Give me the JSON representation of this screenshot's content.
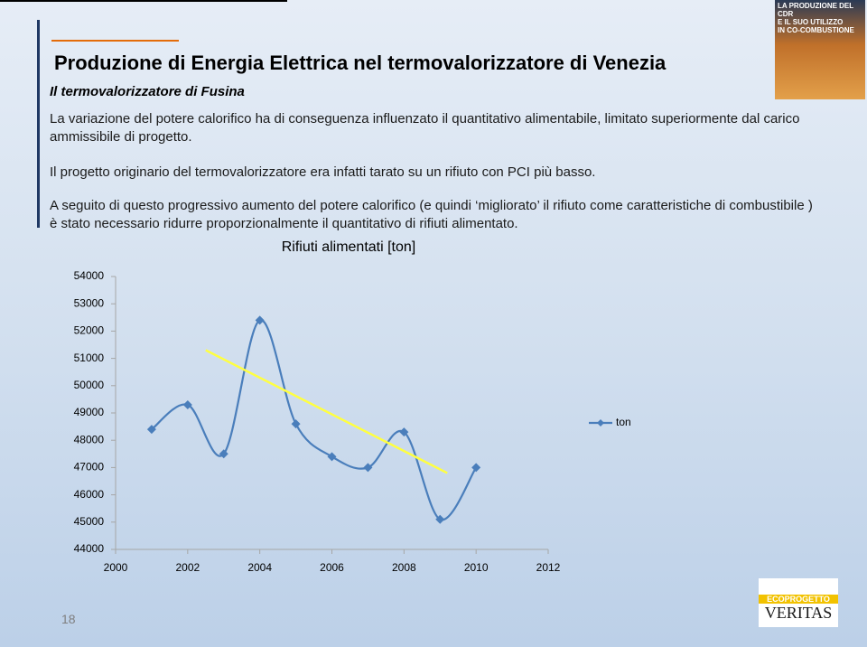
{
  "slide": {
    "title": "Produzione di Energia Elettrica nel termovalorizzatore di Venezia",
    "subtitle": "Il termovalorizzatore di Fusina",
    "paragraphs": [
      "La  variazione del potere calorifico ha di conseguenza influenzato il quantitativo alimentabile, limitato superiormente dal carico ammissibile di progetto.",
      "Il progetto originario del termovalorizzatore era infatti tarato su un rifiuto con PCI più basso.",
      "A seguito di questo progressivo aumento del potere calorifico (e quindi ‘migliorato’ il rifiuto come  caratteristiche di combustibile ) è stato necessario ridurre proporzionalmente il quantitativo di rifiuti alimentato."
    ],
    "page_number": "18",
    "logo_top": [
      "LA PRODUZIONE DEL CDR",
      "E IL SUO UTILIZZO",
      "IN CO-COMBUSTIONE"
    ],
    "logo_bottom": [
      "ECOPROGETTO",
      "VERITAS"
    ]
  },
  "chart_data": {
    "type": "line",
    "title": "Rifiuti alimentati [ton]",
    "x": [
      2001,
      2002,
      2003,
      2004,
      2005,
      2006,
      2007,
      2008,
      2009,
      2010
    ],
    "series": [
      {
        "name": "ton",
        "color": "#4a7ebb",
        "values": [
          48400,
          49300,
          47500,
          52400,
          48600,
          47400,
          47000,
          48300,
          45100,
          47000
        ]
      }
    ],
    "trendline": {
      "color": "#ffff40",
      "x": [
        2002.5,
        2009.2
      ],
      "values": [
        51300,
        46800
      ]
    },
    "xlim": [
      2000,
      2012
    ],
    "xticks": [
      2000,
      2002,
      2004,
      2006,
      2008,
      2010,
      2012
    ],
    "ylim": [
      44000,
      54000
    ],
    "yticks": [
      44000,
      45000,
      46000,
      47000,
      48000,
      49000,
      50000,
      51000,
      52000,
      53000,
      54000
    ],
    "grid": false,
    "legend": "right"
  }
}
